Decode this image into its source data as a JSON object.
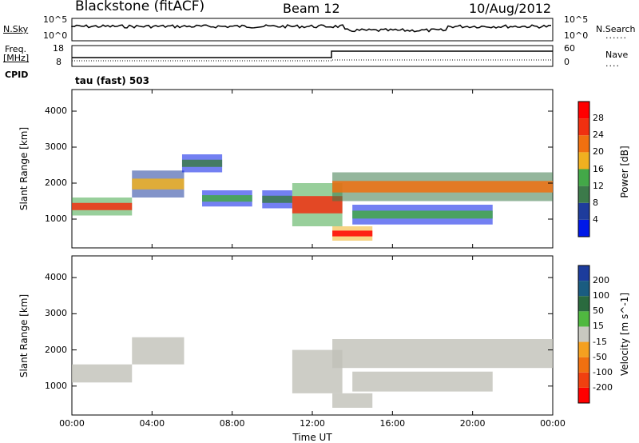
{
  "header": {
    "station": "Blackstone (fitACF)",
    "beam": "Beam 12",
    "date": "10/Aug/2012"
  },
  "summary": {
    "nsky_label": "N.Sky",
    "nsky_ticks": [
      "10^5",
      "10^0"
    ],
    "nsearch_label": "N.Search",
    "freq_label": "Freq.",
    "freq_unit": "[MHz]",
    "freq_ticks": [
      "18",
      "8"
    ],
    "nave_label": "Nave",
    "nave_ticks": [
      "60",
      "0"
    ],
    "cpid_label": "CPID",
    "cpid_value": "tau (fast) 503"
  },
  "colors": {
    "power_scale": [
      "#0018e8",
      "#1e3c9c",
      "#3c7a4a",
      "#43a848",
      "#f0b020",
      "#f07010",
      "#f03010",
      "#ff0000"
    ],
    "velocity_scale": [
      "#ff0000",
      "#f04010",
      "#f07010",
      "#f4a020",
      "#c8c8c0",
      "#50b840",
      "#2a6a3e",
      "#1a5c80",
      "#1c3c9c"
    ],
    "scatter_grey": "#c0c0b8"
  },
  "chart_data": [
    {
      "type": "heatmap",
      "name": "power",
      "ylabel": "Slant Range [km]",
      "yticks": [
        "4000",
        "3000",
        "2000",
        "1000"
      ],
      "ylim": [
        200,
        4600
      ],
      "xlim": [
        0,
        24
      ],
      "colorbar_label": "Power [dB]",
      "colorbar_ticks": [
        "28",
        "24",
        "20",
        "16",
        "12",
        "8",
        "4"
      ],
      "colorbar_range": [
        0,
        32
      ],
      "bands": [
        {
          "t0": 0.0,
          "t1": 3.0,
          "r0": 1100,
          "r1": 1600,
          "level": 26
        },
        {
          "t0": 3.0,
          "t1": 5.6,
          "r0": 1600,
          "r1": 2350,
          "level": 20
        },
        {
          "t0": 5.5,
          "t1": 7.5,
          "r0": 2300,
          "r1": 2800,
          "level": 10
        },
        {
          "t0": 6.5,
          "t1": 9.0,
          "r0": 1350,
          "r1": 1800,
          "level": 12
        },
        {
          "t0": 9.5,
          "t1": 11.0,
          "r0": 1300,
          "r1": 1800,
          "level": 10
        },
        {
          "t0": 11.0,
          "t1": 13.5,
          "r0": 800,
          "r1": 2000,
          "level": 26
        },
        {
          "t0": 13.0,
          "t1": 15.0,
          "r0": 400,
          "r1": 800,
          "level": 30
        },
        {
          "t0": 13.0,
          "t1": 24.0,
          "r0": 1500,
          "r1": 2300,
          "level": 24
        },
        {
          "t0": 14.0,
          "t1": 21.0,
          "r0": 850,
          "r1": 1400,
          "level": 12
        }
      ]
    },
    {
      "type": "heatmap",
      "name": "velocity",
      "xlabel": "Time UT",
      "ylabel": "Slant Range [km]",
      "xticks": [
        "00:00",
        "04:00",
        "08:00",
        "12:00",
        "16:00",
        "20:00",
        "00:00"
      ],
      "yticks": [
        "4000",
        "3000",
        "2000",
        "1000"
      ],
      "ylim": [
        200,
        4600
      ],
      "xlim": [
        0,
        24
      ],
      "colorbar_label": "Velocity [m s^-1]",
      "colorbar_ticks": [
        "200",
        "100",
        "50",
        "15",
        "-15",
        "-50",
        "-100",
        "-200"
      ],
      "bands": [
        {
          "t0": 0.0,
          "t1": 3.0,
          "r0": 1100,
          "r1": 1600,
          "level": 0
        },
        {
          "t0": 3.0,
          "t1": 5.6,
          "r0": 1600,
          "r1": 2350,
          "level": 0
        },
        {
          "t0": 11.0,
          "t1": 13.5,
          "r0": 800,
          "r1": 2000,
          "level": 0
        },
        {
          "t0": 13.0,
          "t1": 15.0,
          "r0": 400,
          "r1": 800,
          "level": 0
        },
        {
          "t0": 13.0,
          "t1": 24.0,
          "r0": 1500,
          "r1": 2300,
          "level": 0
        },
        {
          "t0": 14.0,
          "t1": 21.0,
          "r0": 850,
          "r1": 1400,
          "level": 0
        }
      ]
    }
  ]
}
